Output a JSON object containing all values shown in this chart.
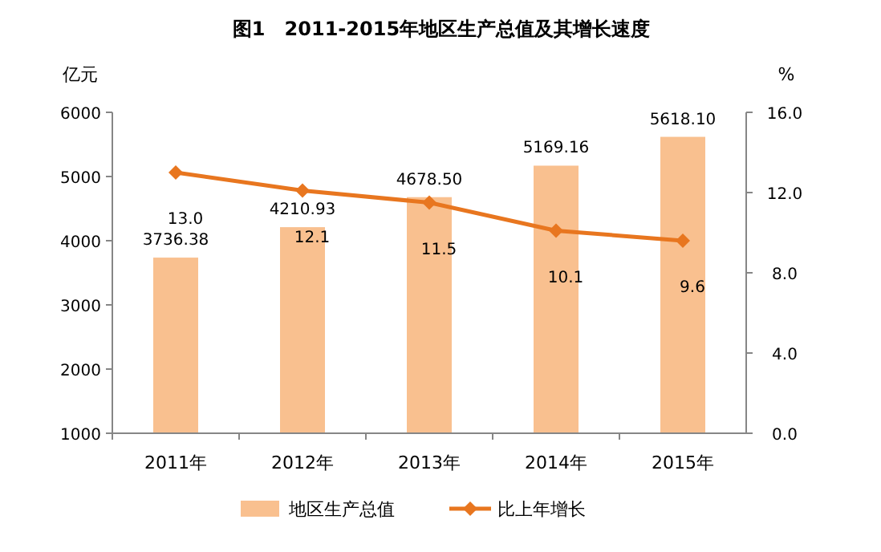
{
  "chart_data": {
    "type": "bar",
    "title": "图1　2011-2015年地区生产总值及其增长速度",
    "ylabel": "亿元",
    "y2label": "%",
    "categories": [
      "2011年",
      "2012年",
      "2013年",
      "2014年",
      "2015年"
    ],
    "series": [
      {
        "name": "地区生产总值",
        "color": "#f9c08f",
        "values": [
          3736.38,
          4210.93,
          4678.5,
          5169.16,
          5618.1
        ],
        "value_labels": [
          "3736.38",
          "4210.93",
          "4678.50",
          "5169.16",
          "5618.10"
        ]
      },
      {
        "name": "比上年增长",
        "type": "line",
        "axis": "y2",
        "color": "#e8761f",
        "marker": "diamond",
        "values": [
          13.0,
          12.1,
          11.5,
          10.1,
          9.6
        ],
        "value_labels": [
          "13.0",
          "12.1",
          "11.5",
          "10.1",
          "9.6"
        ]
      }
    ],
    "ylim": [
      1000,
      6000
    ],
    "yticks": [
      1000,
      2000,
      3000,
      4000,
      5000,
      6000
    ],
    "y2lim": [
      0,
      16
    ],
    "y2ticks": [
      {
        "value": 0,
        "label": "0.0"
      },
      {
        "value": 4,
        "label": "4.0"
      },
      {
        "value": 8,
        "label": "8.0"
      },
      {
        "value": 12,
        "label": "12.0"
      },
      {
        "value": 16,
        "label": "16.0"
      }
    ],
    "grid": false,
    "legend": "bottom"
  }
}
